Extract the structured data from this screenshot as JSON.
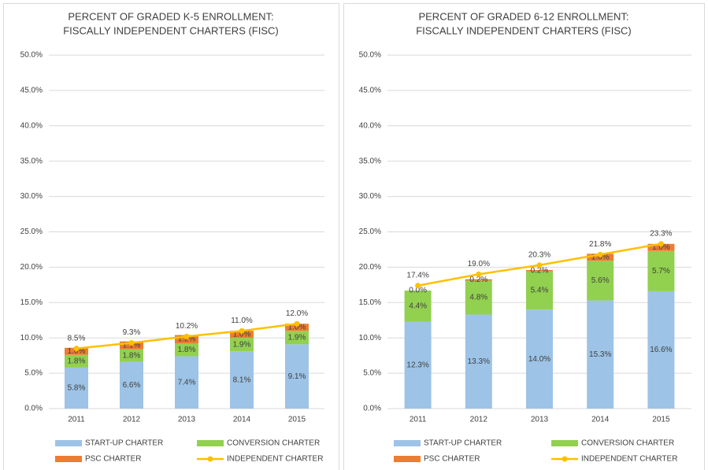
{
  "chart_data": [
    {
      "type": "bar",
      "stacked": true,
      "title": [
        "PERCENT OF GRADED K-5 ENROLLMENT:",
        "FISCALLY INDEPENDENT CHARTERS (FISC)"
      ],
      "categories": [
        "2011",
        "2012",
        "2013",
        "2014",
        "2015"
      ],
      "ylim": [
        0,
        50
      ],
      "yticks": [
        {
          "value": 0,
          "label": "0.0%"
        },
        {
          "value": 5,
          "label": "5.0%"
        },
        {
          "value": 10,
          "label": "10.0%"
        },
        {
          "value": 15,
          "label": "15.0%"
        },
        {
          "value": 20,
          "label": "20.0%"
        },
        {
          "value": 25,
          "label": "25.0%"
        },
        {
          "value": 30,
          "label": "30.0%"
        },
        {
          "value": 35,
          "label": "35.0%"
        },
        {
          "value": 40,
          "label": "40.0%"
        },
        {
          "value": 45,
          "label": "45.0%"
        },
        {
          "value": 50,
          "label": "50.0%"
        }
      ],
      "grid": true,
      "series": [
        {
          "name": "START-UP CHARTER",
          "type": "bar",
          "color": "#9dc3e6",
          "values": [
            5.8,
            6.6,
            7.4,
            8.1,
            9.1
          ],
          "value_labels": [
            "5.8%",
            "6.6%",
            "7.4%",
            "8.1%",
            "9.1%"
          ]
        },
        {
          "name": "CONVERSION CHARTER",
          "type": "bar",
          "color": "#92d050",
          "values": [
            1.8,
            1.8,
            1.8,
            1.9,
            1.9
          ],
          "value_labels": [
            "1.8%",
            "1.8%",
            "1.8%",
            "1.9%",
            "1.9%"
          ]
        },
        {
          "name": "PSC CHARTER",
          "type": "bar",
          "color": "#ed7d31",
          "values": [
            1.0,
            1.1,
            1.2,
            1.0,
            1.0
          ],
          "value_labels": [
            "1.0%",
            "1.1%",
            "1.2%",
            "1.0%",
            "1.0%"
          ]
        },
        {
          "name": "INDEPENDENT CHARTER",
          "type": "line",
          "color": "#ffc000",
          "values": [
            8.5,
            9.3,
            10.2,
            11.0,
            12.0
          ],
          "value_labels": [
            "8.5%",
            "9.3%",
            "10.2%",
            "11.0%",
            "12.0%"
          ]
        }
      ]
    },
    {
      "type": "bar",
      "stacked": true,
      "title": [
        "PERCENT OF GRADED 6-12 ENROLLMENT:",
        "FISCALLY INDEPENDENT CHARTERS (FISC)"
      ],
      "categories": [
        "2011",
        "2012",
        "2013",
        "2014",
        "2015"
      ],
      "ylim": [
        0,
        50
      ],
      "yticks": [
        {
          "value": 0,
          "label": "0.0%"
        },
        {
          "value": 5,
          "label": "5.0%"
        },
        {
          "value": 10,
          "label": "10.0%"
        },
        {
          "value": 15,
          "label": "15.0%"
        },
        {
          "value": 20,
          "label": "20.0%"
        },
        {
          "value": 25,
          "label": "25.0%"
        },
        {
          "value": 30,
          "label": "30.0%"
        },
        {
          "value": 35,
          "label": "35.0%"
        },
        {
          "value": 40,
          "label": "40.0%"
        },
        {
          "value": 45,
          "label": "45.0%"
        },
        {
          "value": 50,
          "label": "50.0%"
        }
      ],
      "grid": true,
      "series": [
        {
          "name": "START-UP CHARTER",
          "type": "bar",
          "color": "#9dc3e6",
          "values": [
            12.3,
            13.3,
            14.0,
            15.3,
            16.6
          ],
          "value_labels": [
            "12.3%",
            "13.3%",
            "14.0%",
            "15.3%",
            "16.6%"
          ]
        },
        {
          "name": "CONVERSION CHARTER",
          "type": "bar",
          "color": "#92d050",
          "values": [
            4.4,
            4.8,
            5.4,
            5.6,
            5.7
          ],
          "value_labels": [
            "4.4%",
            "4.8%",
            "5.4%",
            "5.6%",
            "5.7%"
          ]
        },
        {
          "name": "PSC CHARTER",
          "type": "bar",
          "color": "#ed7d31",
          "values": [
            0.0,
            0.2,
            0.2,
            1.0,
            1.0
          ],
          "value_labels": [
            "0.0%",
            "0.2%",
            "0.2%",
            "1.0%",
            "1.0%"
          ]
        },
        {
          "name": "INDEPENDENT CHARTER",
          "type": "line",
          "color": "#ffc000",
          "values": [
            17.4,
            19.0,
            20.3,
            21.8,
            23.3
          ],
          "value_labels": [
            "17.4%",
            "19.0%",
            "20.3%",
            "21.8%",
            "23.3%"
          ]
        }
      ]
    }
  ]
}
